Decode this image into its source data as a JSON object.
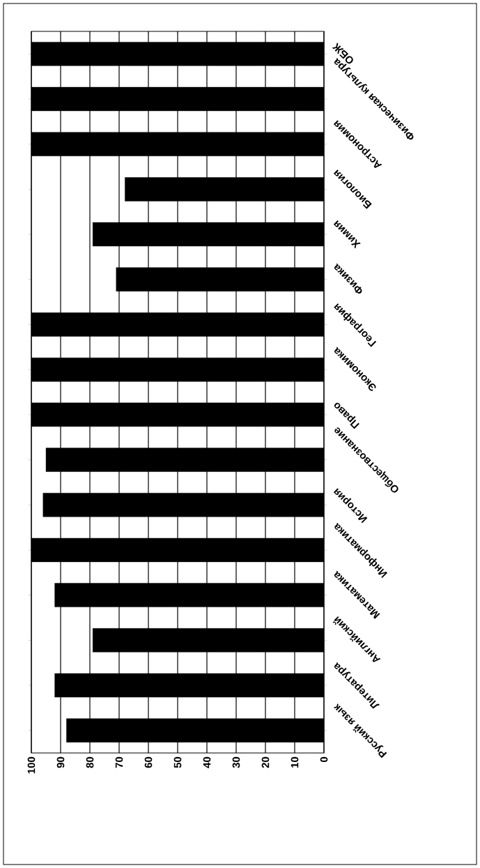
{
  "chart_data": {
    "type": "bar",
    "orientation": "horizontal",
    "categories": [
      "ОБЖ",
      "Физическая культура",
      "Астрономия",
      "Биология",
      "Химия",
      "Физика",
      "География",
      "Экономика",
      "Право",
      "Обществознание",
      "История",
      "Информатика",
      "Математика",
      "Английский",
      "Литература",
      "Русский язык"
    ],
    "values": [
      100,
      100,
      100,
      68,
      79,
      71,
      100,
      100,
      100,
      95,
      96,
      100,
      92,
      79,
      92,
      88
    ],
    "color": "#000000",
    "xlim": [
      100,
      0
    ],
    "xticks": [
      0,
      10,
      20,
      30,
      40,
      50,
      60,
      70,
      80,
      90,
      100
    ],
    "grid": "x"
  }
}
